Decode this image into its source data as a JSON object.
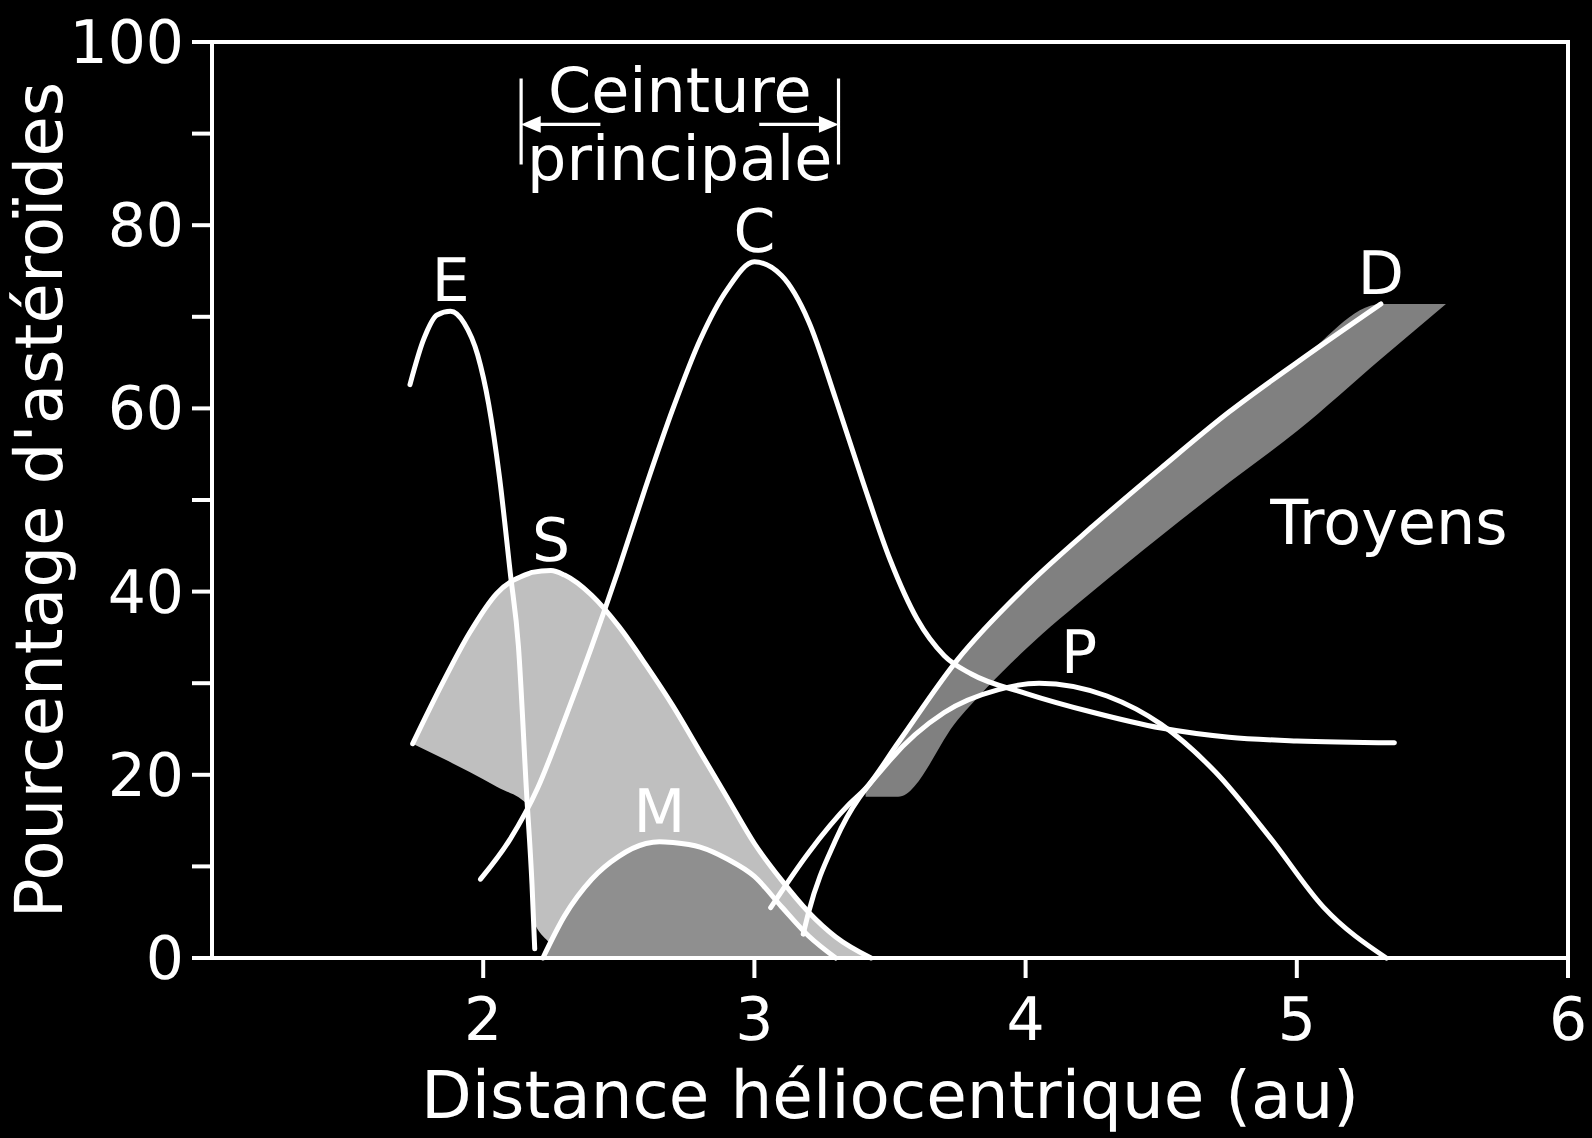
{
  "chart_data": {
    "type": "line",
    "xlabel": "Distance héliocentrique (au)",
    "ylabel": "Pourcentage d'astéroïdes",
    "xlim": [
      1,
      6
    ],
    "xticks": [
      2,
      3,
      4,
      5,
      6
    ],
    "ylim": [
      0,
      100
    ],
    "yticks": [
      0,
      {
        "value": 10,
        "label": null
      },
      20,
      {
        "value": 30,
        "label": null
      },
      40,
      {
        "value": 50,
        "label": null
      },
      60,
      {
        "value": 70,
        "label": null
      },
      80,
      {
        "value": 90,
        "label": null
      },
      100
    ],
    "annotations": [
      "Ceinture principale",
      "Troyens"
    ],
    "series": [
      {
        "name": "S",
        "color": "#ffffff",
        "x": [
          1.74,
          1.85,
          1.95,
          2.05,
          2.17,
          2.18,
          2.25,
          2.3,
          2.4,
          2.5,
          2.6,
          2.7,
          2.8,
          2.9,
          3.0,
          3.1,
          3.2,
          3.3,
          3.43
        ],
        "values": [
          23.4,
          30,
          35.5,
          39.8,
          42.0,
          42.1,
          42.3,
          41.8,
          39.6,
          36.2,
          32,
          27.5,
          22.5,
          17.5,
          12.5,
          8.5,
          5.0,
          2.3,
          0
        ],
        "upper": [
          23.4,
          30,
          35.5,
          39.8,
          42.0,
          42.1,
          42.3,
          41.8,
          39.6,
          36.2,
          32,
          27.5,
          22.5,
          17.5,
          12.5,
          8.5,
          5.0,
          2.3,
          0
        ],
        "lower": [
          23.4,
          21.8,
          20.3,
          18.7,
          16.5,
          4.5,
          1.5,
          0,
          0,
          0,
          0,
          0,
          0,
          0,
          0,
          0,
          0,
          0,
          0
        ]
      },
      {
        "name": "M",
        "type": "area",
        "color": "#8f8f8f",
        "x": [
          2.22,
          2.3,
          2.4,
          2.5,
          2.6,
          2.65,
          2.7,
          2.8,
          2.9,
          3.0,
          3.1,
          3.2,
          3.3
        ],
        "values": [
          0,
          4.6,
          8.6,
          11.1,
          12.5,
          12.7,
          12.6,
          12.1,
          10.8,
          8.9,
          5.6,
          2.4,
          0
        ]
      },
      {
        "name": "D",
        "color": "#ffffff",
        "x": [
          3.06,
          3.2,
          3.35,
          3.41,
          3.53,
          3.75,
          4.0,
          4.25,
          4.5,
          4.75,
          5.0,
          5.31,
          5.55
        ],
        "values": [
          5.5,
          11.5,
          16.8,
          18.5,
          23.5,
          32.6,
          40.5,
          47.2,
          53.5,
          59.6,
          65.0,
          71.4,
          null
        ],
        "upper": [
          null,
          null,
          null,
          18.5,
          23.5,
          32.6,
          40.5,
          47.2,
          53.5,
          59.6,
          65.0,
          71.4,
          71.4
        ],
        "lower": [
          null,
          null,
          null,
          17.6,
          17.6,
          26.0,
          33.7,
          40.1,
          46.1,
          51.9,
          57.5,
          65.4,
          71.4
        ]
      },
      {
        "name": "E",
        "color": "#ffffff",
        "x": [
          1.73,
          1.78,
          1.83,
          1.88,
          1.93,
          1.98,
          2.02,
          2.06,
          2.1,
          2.13,
          2.16,
          2.18,
          2.19
        ],
        "values": [
          62.6,
          67.5,
          70.2,
          70.6,
          69.3,
          65.8,
          60.5,
          52.5,
          42,
          34,
          18,
          8,
          1
        ]
      },
      {
        "name": "C",
        "color": "#ffffff",
        "x": [
          1.99,
          2.1,
          2.2,
          2.3,
          2.4,
          2.5,
          2.6,
          2.7,
          2.8,
          2.9,
          3.0,
          3.1,
          3.2,
          3.3,
          3.4,
          3.5,
          3.6,
          3.7,
          3.8,
          4.0,
          4.25,
          4.5,
          4.75,
          5.0,
          5.36
        ],
        "values": [
          8.6,
          13,
          18.5,
          26,
          34,
          42.5,
          51.5,
          60,
          67.5,
          73,
          76,
          74.5,
          69.5,
          61,
          52,
          43.5,
          37,
          33,
          31,
          28.9,
          26.8,
          25.1,
          24.1,
          23.7,
          23.5
        ]
      },
      {
        "name": "P",
        "color": "#ffffff",
        "x": [
          3.18,
          3.2,
          3.3,
          3.5,
          3.7,
          3.9,
          4.05,
          4.3,
          4.5,
          4.7,
          4.9,
          5.1,
          5.33
        ],
        "values": [
          2.6,
          5,
          12.9,
          21.6,
          26.8,
          29.3,
          30,
          28.6,
          25.5,
          20.3,
          13.2,
          5.5,
          0
        ]
      }
    ]
  }
}
